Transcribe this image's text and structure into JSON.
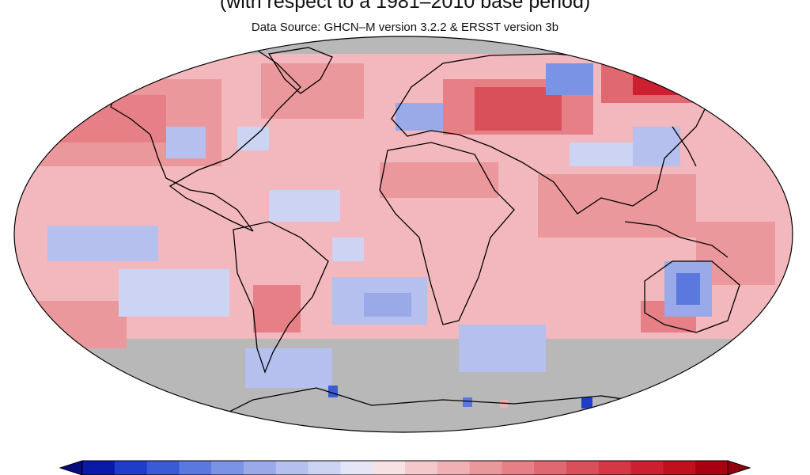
{
  "header": {
    "subtitle": "(with respect to a 1981–2010 base period)",
    "data_source": "Data Source: GHCN–M version 3.2.2 & ERSST version 3b"
  },
  "map": {
    "projection": "robinson",
    "ocean_anomaly_color": "#f2b8bd",
    "no_data_color": "#b8b8b8",
    "coastline_color": "#000000"
  },
  "legend": {
    "colors": [
      "#0a1aa8",
      "#1f3dc8",
      "#3a5ad6",
      "#5a78de",
      "#7b93e4",
      "#9aaae9",
      "#b5c0ee",
      "#cdd3f3",
      "#e4e6f7",
      "#f8e1e2",
      "#f5c8cb",
      "#f0b0b4",
      "#eb989d",
      "#e68086",
      "#e06870",
      "#da505a",
      "#d43844",
      "#cc2030",
      "#c0101e",
      "#a80010"
    ],
    "arrow_left_color": "#0a0a80",
    "arrow_right_color": "#900010"
  }
}
